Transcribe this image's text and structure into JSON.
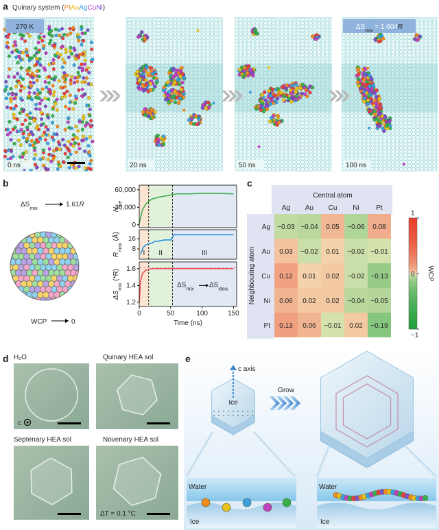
{
  "panel_a": {
    "label": "a",
    "title_parts": [
      {
        "text": "Quinary system (",
        "color": "#333333"
      },
      {
        "text": "Pt",
        "color": "#f08c1e"
      },
      {
        "text": "Au",
        "color": "#e0b81a"
      },
      {
        "text": "Ag",
        "color": "#3aa0e0"
      },
      {
        "text": "Cu",
        "color": "#c040c0"
      },
      {
        "text": "Ni",
        "color": "#7a4fc8"
      },
      {
        "text": ")",
        "color": "#333333"
      }
    ],
    "temperature": "270 K",
    "entropy": {
      "main": "ΔS",
      "sub": "mix",
      "rest": " = 1.604",
      "unit": "R"
    },
    "frames": [
      "0 ns",
      "20 ns",
      "50 ns",
      "100 ns"
    ]
  },
  "panel_b": {
    "label": "b",
    "entropy": {
      "main": "ΔS",
      "sub": "mix",
      "rest": "1.61",
      "unit": "R"
    },
    "wcp": "WCP",
    "wcp_target": "0"
  },
  "chart_data": [
    {
      "type": "line",
      "ylabel": {
        "main": "N",
        "sub": "ice"
      },
      "x": [
        0,
        2,
        5,
        10,
        15,
        20,
        30,
        40,
        50,
        60,
        80,
        100,
        120,
        150
      ],
      "series": [
        {
          "color": "#3bb04a",
          "values": [
            2000,
            12000,
            25000,
            35000,
            40000,
            44000,
            47000,
            49000,
            51000,
            53000,
            53000,
            54000,
            54000,
            53000
          ]
        }
      ],
      "xlim": [
        0,
        155
      ],
      "ylim": [
        -5000,
        68000
      ],
      "yticks": [
        0,
        {
          "value": 30000,
          "label": "30,000"
        },
        {
          "value": 60000,
          "label": "60,000"
        }
      ]
    },
    {
      "type": "line",
      "ylabel": {
        "main": "R",
        "sub": "max",
        "unit": " (Å)"
      },
      "x": [
        2,
        4,
        6,
        8,
        10,
        15,
        20,
        25,
        30,
        40,
        50,
        55,
        60,
        100,
        150
      ],
      "series": [
        {
          "color": "#2a8fe0",
          "values": [
            4,
            6,
            9,
            10,
            11,
            12,
            12.5,
            14,
            14,
            15,
            15,
            19,
            19,
            19,
            19
          ]
        }
      ],
      "xlim": [
        0,
        155
      ],
      "ylim": [
        0,
        23
      ],
      "yticks": [
        8,
        16
      ],
      "boundaries": [
        15,
        53
      ],
      "regions": [
        "I",
        "II",
        "III"
      ],
      "region_colors": [
        "#fbe5d2",
        "#e2f1dc",
        "#e2e9f5"
      ]
    },
    {
      "type": "line",
      "ylabel": {
        "main": "ΔS",
        "sub": "mix",
        "unit": " (*R)"
      },
      "x": [
        0,
        2,
        5,
        10,
        15,
        20,
        30,
        50,
        80,
        100,
        150
      ],
      "series": [
        {
          "color": "#e8505a",
          "values": [
            1.2,
            1.45,
            1.54,
            1.58,
            1.59,
            1.6,
            1.6,
            1.6,
            1.6,
            1.6,
            1.6
          ]
        }
      ],
      "xlim": [
        0,
        155
      ],
      "ylim": [
        1.15,
        1.68
      ],
      "yticks": [
        1.2,
        1.4,
        1.6
      ],
      "xticks": [
        0,
        50,
        100,
        150
      ],
      "ref_line": 1.61,
      "xlabel": "Time (ns)",
      "annotation": {
        "main": "ΔS",
        "sub": "mix",
        "target_main": "ΔS",
        "target_sub": "idea"
      }
    },
    {
      "type": "heatmap",
      "xlabel": "Central atom",
      "ylabel": "Neighbouring atom",
      "x_categories": [
        "Ag",
        "Au",
        "Cu",
        "Ni",
        "Pt"
      ],
      "y_categories": [
        "Ag",
        "Au",
        "Cu",
        "Ni",
        "Pt"
      ],
      "values": [
        [
          -0.03,
          -0.04,
          0.05,
          -0.06,
          0.08
        ],
        [
          0.03,
          -0.02,
          0.01,
          -0.02,
          -0.01
        ],
        [
          0.12,
          0.01,
          0.02,
          -0.02,
          -0.13
        ],
        [
          0.06,
          0.02,
          0.02,
          -0.04,
          -0.05
        ],
        [
          0.13,
          0.06,
          -0.01,
          0.02,
          -0.19
        ]
      ],
      "value_labels": [
        [
          "−0.03",
          "−0.04",
          "0.05",
          "−0.06",
          "0.08"
        ],
        [
          "0.03",
          "−0.02",
          "0.01",
          "−0.02",
          "−0.01"
        ],
        [
          "0.12",
          "0.01",
          "0.02",
          "−0.02",
          "−0.13"
        ],
        [
          "0.06",
          "0.02",
          "0.02",
          "−0.04",
          "−0.05"
        ],
        [
          "0.13",
          "0.06",
          "−0.01",
          "0.02",
          "−0.19"
        ]
      ],
      "zlim": [
        -1,
        1
      ],
      "zticks": [
        1,
        0,
        {
          "value": -1,
          "label": "−1"
        }
      ],
      "colorbar_label": "WCP"
    }
  ],
  "panel_c": {
    "label": "c"
  },
  "panel_d": {
    "label": "d",
    "images": [
      "H₂O",
      "Quinary HEA sol",
      "Septenary HEA sol",
      "Novenary HEA sol"
    ],
    "axis": "c",
    "delta_t": "ΔT = 0.1 °C"
  },
  "panel_e": {
    "label": "e",
    "c_axis": "c axis",
    "ice": "Ice",
    "grow": "Grow",
    "water_left": "Water",
    "ice_left": "Ice",
    "water_right": "Water",
    "ice_right": "Ice"
  }
}
